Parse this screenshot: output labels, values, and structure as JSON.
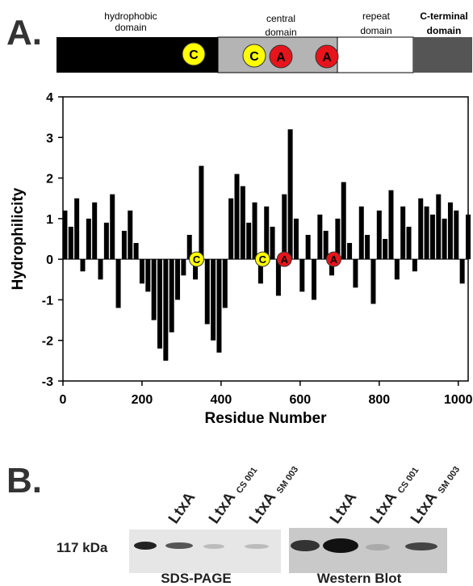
{
  "panel_a": {
    "label": "A.",
    "domains": [
      {
        "lines": [
          "hydrophobic",
          "domain"
        ]
      },
      {
        "lines": [
          "central",
          "domain"
        ]
      },
      {
        "lines": [
          "repeat",
          "domain"
        ]
      },
      {
        "lines": [
          "C-terminal",
          "domain"
        ]
      }
    ],
    "markers": [
      "C",
      "C",
      "A",
      "A"
    ]
  },
  "chart_data": {
    "type": "bar",
    "x_label": "Residue Number",
    "y_label": "Hydrophilicity",
    "color": "#000000",
    "x": [
      5,
      20,
      35,
      50,
      65,
      80,
      95,
      110,
      125,
      140,
      155,
      170,
      185,
      200,
      215,
      230,
      245,
      260,
      275,
      290,
      305,
      320,
      335,
      350,
      365,
      380,
      395,
      410,
      425,
      440,
      455,
      470,
      485,
      500,
      515,
      530,
      545,
      560,
      575,
      590,
      605,
      620,
      635,
      650,
      665,
      680,
      695,
      710,
      725,
      740,
      755,
      770,
      785,
      800,
      815,
      830,
      845,
      860,
      875,
      890,
      905,
      920,
      935,
      950,
      965,
      980,
      995,
      1010,
      1025
    ],
    "values": [
      1.2,
      0.8,
      1.5,
      -0.3,
      1.0,
      1.4,
      -0.5,
      0.9,
      1.6,
      -1.2,
      0.7,
      1.2,
      0.4,
      -0.6,
      -0.8,
      -1.5,
      -2.2,
      -2.5,
      -1.8,
      -1.0,
      -0.4,
      0.6,
      -0.5,
      2.3,
      -1.6,
      -2.0,
      -2.3,
      -1.2,
      1.5,
      2.1,
      1.8,
      0.9,
      1.4,
      -0.6,
      1.3,
      0.8,
      -0.9,
      1.6,
      3.2,
      1.0,
      -0.8,
      0.6,
      -1.0,
      1.1,
      0.7,
      -0.4,
      1.0,
      1.9,
      0.4,
      -0.7,
      1.3,
      0.6,
      -1.1,
      1.2,
      0.5,
      1.7,
      -0.5,
      1.3,
      0.8,
      -0.3,
      1.5,
      1.3,
      1.1,
      1.6,
      1.0,
      1.4,
      1.2,
      -0.6,
      1.1
    ],
    "xlim": [
      0,
      1025
    ],
    "xticks": [
      0,
      200,
      400,
      600,
      800,
      1000
    ],
    "ylim": [
      -3,
      4
    ],
    "yticks": [
      -3,
      -2,
      -1,
      0,
      1,
      2,
      3,
      4
    ],
    "annotations": [
      {
        "text": "C",
        "x": 338,
        "color": "#ffff00"
      },
      {
        "text": "C",
        "x": 505,
        "color": "#ffff00"
      },
      {
        "text": "A",
        "x": 560,
        "color": "#e8141b"
      },
      {
        "text": "A",
        "x": 685,
        "color": "#e8141b"
      }
    ]
  },
  "panel_b": {
    "label": "B.",
    "size_marker": "117 kDa",
    "gels": [
      {
        "caption": "SDS-PAGE",
        "lanes": [
          {
            "name": "LtxA"
          },
          {
            "name": "LtxA",
            "strain": "CS 001"
          },
          {
            "name": "LtxA",
            "strain": "SM 003"
          }
        ]
      },
      {
        "caption": "Western Blot",
        "lanes": [
          {
            "name": "LtxA"
          },
          {
            "name": "LtxA",
            "strain": "CS 001"
          },
          {
            "name": "LtxA",
            "strain": "SM 003"
          }
        ]
      }
    ]
  }
}
